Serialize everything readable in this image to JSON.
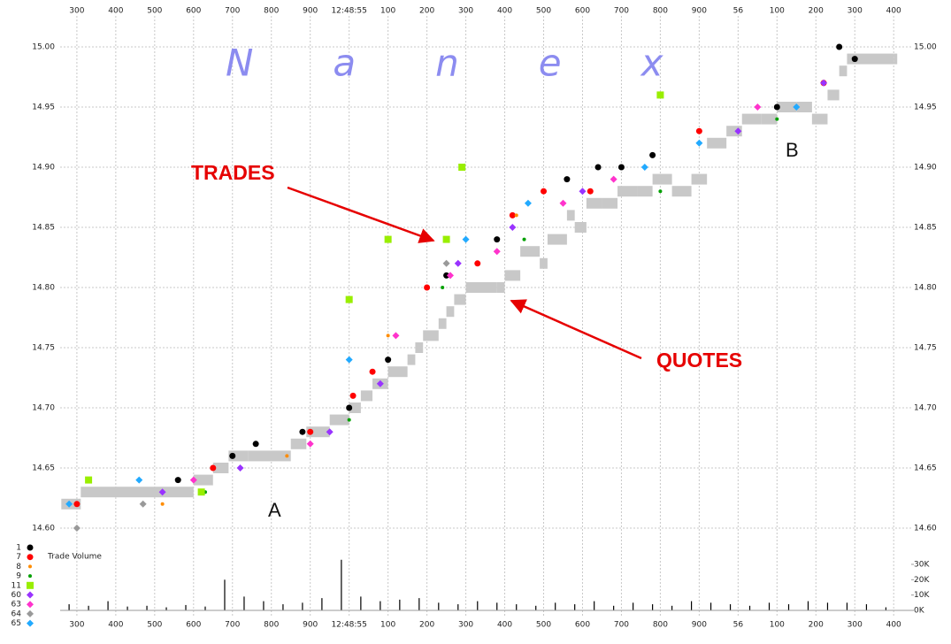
{
  "chart_data": {
    "type": "scatter",
    "watermark": "Nanex",
    "annotations": [
      "TRADES",
      "QUOTES",
      "A",
      "B"
    ],
    "xlim": [
      257,
      2445
    ],
    "xticks": [
      300,
      400,
      500,
      600,
      700,
      800,
      900,
      {
        "value": 1000,
        "label": "12:48:55"
      },
      {
        "value": 1100,
        "label": "100"
      },
      {
        "value": 1200,
        "label": "200"
      },
      {
        "value": 1300,
        "label": "300"
      },
      {
        "value": 1400,
        "label": "400"
      },
      {
        "value": 1500,
        "label": "500"
      },
      {
        "value": 1600,
        "label": "600"
      },
      {
        "value": 1700,
        "label": "700"
      },
      {
        "value": 1800,
        "label": "800"
      },
      {
        "value": 1900,
        "label": "900"
      },
      {
        "value": 2000,
        "label": "56"
      },
      {
        "value": 2100,
        "label": "100"
      },
      {
        "value": 2200,
        "label": "200"
      },
      {
        "value": 2300,
        "label": "300"
      },
      {
        "value": 2400,
        "label": "400"
      }
    ],
    "ylim": [
      14.59,
      15.02
    ],
    "yticks": [
      {
        "value": 14.6,
        "label": "14.60"
      },
      14.65,
      {
        "value": 14.7,
        "label": "14.70"
      },
      14.75,
      {
        "value": 14.8,
        "label": "14.80"
      },
      14.85,
      {
        "value": 14.9,
        "label": "14.90"
      },
      14.95,
      {
        "value": 15,
        "label": "15.00"
      }
    ],
    "grid": true,
    "quotes": {
      "color": "#c8c8c8",
      "x": [
        260,
        310,
        600,
        650,
        690,
        740,
        850,
        890,
        950,
        1000,
        1030,
        1060,
        1100,
        1150,
        1170,
        1190,
        1230,
        1250,
        1270,
        1300,
        1380,
        1400,
        1440,
        1490,
        1510,
        1560,
        1580,
        1610,
        1650,
        1690,
        1740,
        1780,
        1830,
        1880,
        1920,
        1970,
        2010,
        2060,
        2100,
        2150,
        2190,
        2230,
        2260,
        2280,
        2400
      ],
      "values": [
        14.62,
        14.63,
        14.64,
        14.65,
        14.66,
        14.66,
        14.67,
        14.68,
        14.69,
        14.7,
        14.71,
        14.72,
        14.73,
        14.74,
        14.75,
        14.76,
        14.77,
        14.78,
        14.79,
        14.8,
        14.8,
        14.81,
        14.83,
        14.82,
        14.84,
        14.86,
        14.85,
        14.87,
        14.87,
        14.88,
        14.88,
        14.89,
        14.88,
        14.89,
        14.92,
        14.93,
        14.94,
        14.94,
        14.95,
        14.95,
        14.94,
        14.96,
        14.98,
        14.99,
        14.99
      ]
    },
    "series": [
      {
        "name": "1",
        "color": "#000000",
        "marker": "circle",
        "x": [
          560,
          700,
          760,
          880,
          1000,
          1100,
          1250,
          1380,
          1560,
          1640,
          1700,
          1780,
          2100,
          2260,
          2300
        ],
        "values": [
          14.64,
          14.66,
          14.67,
          14.68,
          14.7,
          14.74,
          14.81,
          14.84,
          14.89,
          14.9,
          14.9,
          14.91,
          14.95,
          15,
          14.99
        ]
      },
      {
        "name": "7",
        "color": "#ff0000",
        "marker": "circle",
        "x": [
          300,
          650,
          900,
          1010,
          1060,
          1200,
          1330,
          1420,
          1500,
          1620,
          1900,
          2220
        ],
        "values": [
          14.62,
          14.65,
          14.68,
          14.71,
          14.73,
          14.8,
          14.82,
          14.86,
          14.88,
          14.88,
          14.93,
          14.97
        ]
      },
      {
        "name": "8",
        "color": "#ff8c00",
        "marker": "dot",
        "x": [
          520,
          840,
          1100,
          1430
        ],
        "values": [
          14.62,
          14.66,
          14.76,
          14.86
        ]
      },
      {
        "name": "9",
        "color": "#00a000",
        "marker": "dot",
        "x": [
          630,
          1000,
          1240,
          1450,
          1800,
          2100
        ],
        "values": [
          14.63,
          14.69,
          14.8,
          14.84,
          14.88,
          14.94
        ]
      },
      {
        "name": "11",
        "color": "#99ee00",
        "marker": "square",
        "x": [
          330,
          620,
          1000,
          1100,
          1250,
          1290,
          1800
        ],
        "values": [
          14.64,
          14.63,
          14.79,
          14.84,
          14.84,
          14.9,
          14.96
        ]
      },
      {
        "name": "60",
        "color": "#9933ff",
        "marker": "diamond",
        "x": [
          520,
          720,
          950,
          1080,
          1280,
          1420,
          1600,
          2000,
          2220
        ],
        "values": [
          14.63,
          14.65,
          14.68,
          14.72,
          14.82,
          14.85,
          14.88,
          14.93,
          14.97
        ]
      },
      {
        "name": "63",
        "color": "#ff33cc",
        "marker": "diamond",
        "x": [
          600,
          900,
          1120,
          1260,
          1380,
          1550,
          1680,
          2050
        ],
        "values": [
          14.64,
          14.67,
          14.76,
          14.81,
          14.83,
          14.87,
          14.89,
          14.95
        ]
      },
      {
        "name": "64",
        "color": "#999999",
        "marker": "diamond",
        "x": [
          300,
          470,
          1250
        ],
        "values": [
          14.6,
          14.62,
          14.82
        ]
      },
      {
        "name": "65",
        "color": "#22aaff",
        "marker": "diamond",
        "x": [
          280,
          460,
          1000,
          1300,
          1460,
          1760,
          1900,
          2150
        ],
        "values": [
          14.62,
          14.64,
          14.74,
          14.84,
          14.87,
          14.9,
          14.92,
          14.95
        ]
      }
    ],
    "volume": {
      "label": "Trade Volume",
      "color": "#000000",
      "ylim": [
        0,
        35000
      ],
      "yticks": [
        {
          "value": 0,
          "label": "0K"
        },
        {
          "value": 10000,
          "label": "10K"
        },
        {
          "value": 20000,
          "label": "20K"
        },
        {
          "value": 30000,
          "label": "30K"
        }
      ],
      "x": [
        280,
        330,
        380,
        430,
        480,
        530,
        580,
        630,
        680,
        730,
        780,
        830,
        880,
        930,
        980,
        1030,
        1080,
        1130,
        1180,
        1230,
        1280,
        1330,
        1380,
        1430,
        1480,
        1530,
        1580,
        1630,
        1680,
        1730,
        1780,
        1830,
        1880,
        1930,
        1980,
        2030,
        2080,
        2130,
        2180,
        2230,
        2280,
        2330,
        2380
      ],
      "values": [
        4000,
        3000,
        6000,
        2500,
        3000,
        2000,
        3500,
        2500,
        20000,
        9000,
        6000,
        4000,
        5000,
        8000,
        33000,
        9000,
        6000,
        7000,
        8000,
        5000,
        4000,
        6000,
        5000,
        4000,
        3000,
        5000,
        4000,
        6000,
        3000,
        5000,
        4000,
        3000,
        6000,
        5000,
        4000,
        3000,
        5000,
        4000,
        6000,
        5000,
        5000,
        4000,
        2000
      ]
    }
  }
}
